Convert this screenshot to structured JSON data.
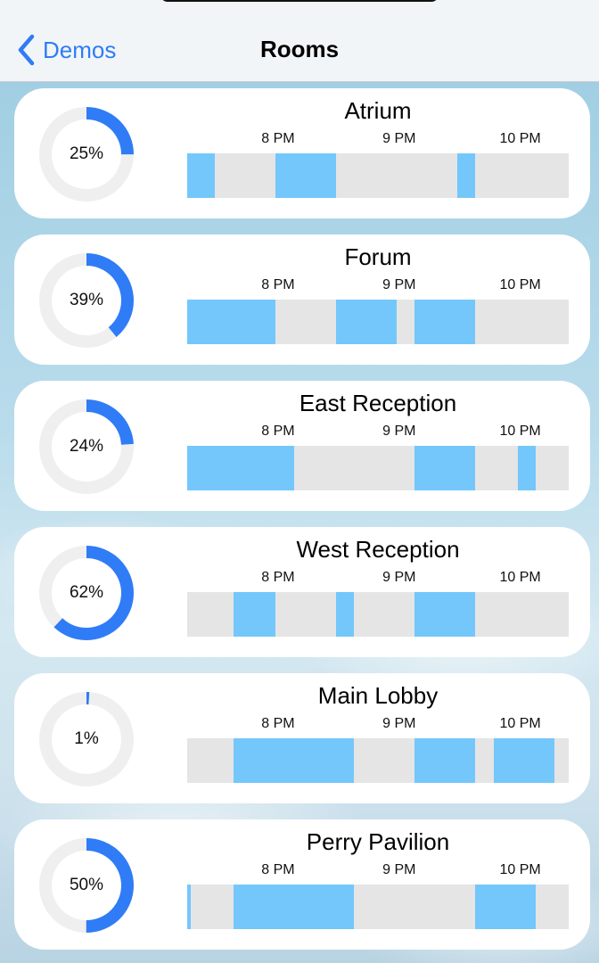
{
  "nav": {
    "back_label": "Demos",
    "title": "Rooms"
  },
  "timeline": {
    "start_hour": 19.25,
    "end_hour": 22.4,
    "ticks": [
      {
        "label": "8 PM",
        "hour": 20
      },
      {
        "label": "9 PM",
        "hour": 21
      },
      {
        "label": "10 PM",
        "hour": 22
      }
    ]
  },
  "colors": {
    "accent": "#2f7cf6",
    "ring_track": "#efefef",
    "busy": "#74c7fb",
    "free": "#e5e5e5"
  },
  "rooms": [
    {
      "name": "Atrium",
      "percent_label": "25%",
      "percent": 25,
      "bookings": [
        [
          19.25,
          19.48
        ],
        [
          19.98,
          20.48
        ],
        [
          21.48,
          21.63
        ]
      ]
    },
    {
      "name": "Forum",
      "percent_label": "39%",
      "percent": 39,
      "bookings": [
        [
          19.25,
          19.98
        ],
        [
          20.48,
          20.98
        ],
        [
          21.13,
          21.63
        ]
      ]
    },
    {
      "name": "East Reception",
      "percent_label": "24%",
      "percent": 24,
      "bookings": [
        [
          19.25,
          20.13
        ],
        [
          21.13,
          21.63
        ],
        [
          21.98,
          22.13
        ]
      ]
    },
    {
      "name": "West Reception",
      "percent_label": "62%",
      "percent": 62,
      "bookings": [
        [
          19.63,
          19.98
        ],
        [
          20.48,
          20.63
        ],
        [
          21.13,
          21.63
        ]
      ]
    },
    {
      "name": "Main Lobby",
      "percent_label": "1%",
      "percent": 1,
      "bookings": [
        [
          19.63,
          20.63
        ],
        [
          21.13,
          21.63
        ],
        [
          21.78,
          22.28
        ]
      ]
    },
    {
      "name": "Perry Pavilion",
      "percent_label": "50%",
      "percent": 50,
      "bookings": [
        [
          19.25,
          19.28
        ],
        [
          19.63,
          20.63
        ],
        [
          21.63,
          22.13
        ]
      ]
    }
  ]
}
